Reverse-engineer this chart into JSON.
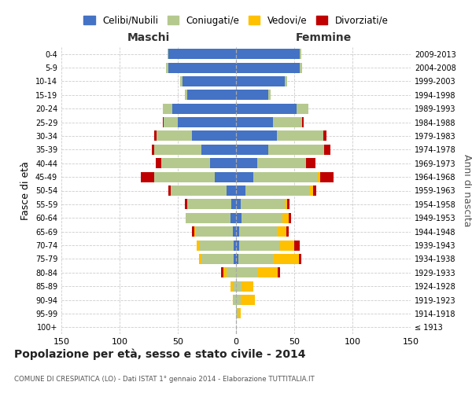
{
  "age_groups": [
    "100+",
    "95-99",
    "90-94",
    "85-89",
    "80-84",
    "75-79",
    "70-74",
    "65-69",
    "60-64",
    "55-59",
    "50-54",
    "45-49",
    "40-44",
    "35-39",
    "30-34",
    "25-29",
    "20-24",
    "15-19",
    "10-14",
    "5-9",
    "0-4"
  ],
  "birth_years": [
    "≤ 1913",
    "1914-1918",
    "1919-1923",
    "1924-1928",
    "1929-1933",
    "1934-1938",
    "1939-1943",
    "1944-1948",
    "1949-1953",
    "1954-1958",
    "1959-1963",
    "1964-1968",
    "1969-1973",
    "1974-1978",
    "1979-1983",
    "1984-1988",
    "1989-1993",
    "1994-1998",
    "1999-2003",
    "2004-2008",
    "2009-2013"
  ],
  "males": {
    "celibe": [
      0,
      0,
      0,
      0,
      0,
      2,
      2,
      3,
      5,
      4,
      8,
      18,
      22,
      30,
      38,
      50,
      55,
      42,
      46,
      58,
      58
    ],
    "coniugato": [
      0,
      0,
      2,
      3,
      8,
      28,
      30,
      32,
      38,
      38,
      48,
      52,
      42,
      40,
      30,
      12,
      8,
      2,
      2,
      2,
      1
    ],
    "vedovo": [
      0,
      0,
      1,
      2,
      3,
      2,
      2,
      1,
      0,
      0,
      0,
      0,
      0,
      0,
      0,
      0,
      0,
      0,
      0,
      0,
      0
    ],
    "divorziato": [
      0,
      0,
      0,
      0,
      2,
      0,
      0,
      2,
      0,
      2,
      2,
      12,
      5,
      2,
      2,
      1,
      0,
      0,
      0,
      0,
      0
    ]
  },
  "females": {
    "nubile": [
      0,
      0,
      0,
      0,
      0,
      2,
      3,
      3,
      5,
      4,
      8,
      15,
      18,
      28,
      35,
      32,
      52,
      28,
      42,
      55,
      55
    ],
    "coniugata": [
      0,
      2,
      4,
      5,
      18,
      30,
      35,
      32,
      35,
      38,
      55,
      55,
      42,
      48,
      40,
      25,
      10,
      2,
      2,
      2,
      1
    ],
    "vedova": [
      0,
      2,
      12,
      10,
      18,
      22,
      12,
      8,
      5,
      2,
      3,
      2,
      0,
      0,
      0,
      0,
      0,
      0,
      0,
      0,
      0
    ],
    "divorziata": [
      0,
      0,
      0,
      0,
      2,
      2,
      5,
      2,
      2,
      2,
      3,
      12,
      8,
      5,
      3,
      1,
      0,
      0,
      0,
      0,
      0
    ]
  },
  "colors": {
    "celibe": "#4472c4",
    "coniugato": "#b5c98e",
    "vedovo": "#ffc000",
    "divorziato": "#c00000"
  },
  "title": "Popolazione per età, sesso e stato civile - 2014",
  "subtitle": "COMUNE DI CRESPIATICA (LO) - Dati ISTAT 1° gennaio 2014 - Elaborazione TUTTITALIA.IT",
  "xlabel_left": "Maschi",
  "xlabel_right": "Femmine",
  "ylabel_left": "Fasce di età",
  "ylabel_right": "Anni di nascita",
  "xlim": 150,
  "background_color": "#ffffff",
  "grid_color": "#cccccc",
  "legend_labels": [
    "Celibi/Nubili",
    "Coniugati/e",
    "Vedovi/e",
    "Divorziati/e"
  ]
}
